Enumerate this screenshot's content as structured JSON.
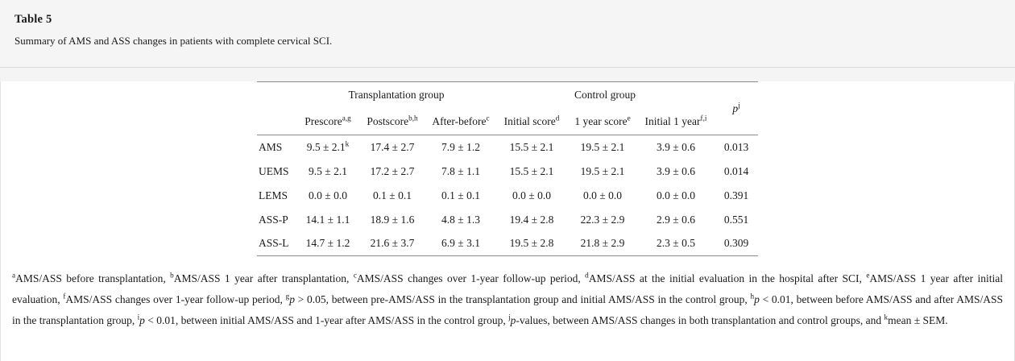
{
  "header": {
    "title": "Table 5",
    "caption": "Summary of AMS and ASS changes in patients with complete cervical SCI."
  },
  "table": {
    "group_headers": [
      {
        "label": "Transplantation group",
        "span": 3
      },
      {
        "label": "Control group",
        "span": 3
      }
    ],
    "p_header": {
      "base": "p",
      "sup": "j"
    },
    "columns": [
      {
        "label": "Prescore",
        "sup": "a,g"
      },
      {
        "label": "Postscore",
        "sup": "b,h"
      },
      {
        "label": "After-before",
        "sup": "c"
      },
      {
        "label": "Initial score",
        "sup": "d"
      },
      {
        "label": "1 year score",
        "sup": "e"
      },
      {
        "label": "Initial 1 year",
        "sup": "f,i"
      }
    ],
    "rows": [
      {
        "label": "AMS",
        "values": [
          [
            "9.5 ± 2.1",
            "k"
          ],
          [
            "17.4 ± 2.7",
            ""
          ],
          [
            "7.9 ± 1.2",
            ""
          ],
          [
            "15.5 ± 2.1",
            ""
          ],
          [
            "19.5 ± 2.1",
            ""
          ],
          [
            "3.9 ± 0.6",
            ""
          ]
        ],
        "p": "0.013"
      },
      {
        "label": "UEMS",
        "values": [
          [
            "9.5 ± 2.1",
            ""
          ],
          [
            "17.2 ± 2.7",
            ""
          ],
          [
            "7.8 ± 1.1",
            ""
          ],
          [
            "15.5 ± 2.1",
            ""
          ],
          [
            "19.5 ± 2.1",
            ""
          ],
          [
            "3.9 ± 0.6",
            ""
          ]
        ],
        "p": "0.014"
      },
      {
        "label": "LEMS",
        "values": [
          [
            "0.0 ± 0.0",
            ""
          ],
          [
            "0.1 ± 0.1",
            ""
          ],
          [
            "0.1 ± 0.1",
            ""
          ],
          [
            "0.0 ± 0.0",
            ""
          ],
          [
            "0.0 ± 0.0",
            ""
          ],
          [
            "0.0 ± 0.0",
            ""
          ]
        ],
        "p": "0.391"
      },
      {
        "label": "ASS-P",
        "values": [
          [
            "14.1 ± 1.1",
            ""
          ],
          [
            "18.9 ± 1.6",
            ""
          ],
          [
            "4.8 ± 1.3",
            ""
          ],
          [
            "19.4 ± 2.8",
            ""
          ],
          [
            "22.3 ± 2.9",
            ""
          ],
          [
            "2.9 ± 0.6",
            ""
          ]
        ],
        "p": "0.551"
      },
      {
        "label": "ASS-L",
        "values": [
          [
            "14.7 ± 1.2",
            ""
          ],
          [
            "21.6 ± 3.7",
            ""
          ],
          [
            "6.9 ± 3.1",
            ""
          ],
          [
            "19.5 ± 2.8",
            ""
          ],
          [
            "21.8 ± 2.9",
            ""
          ],
          [
            "2.3 ± 0.5",
            ""
          ]
        ],
        "p": "0.309"
      }
    ]
  },
  "footnotes": [
    {
      "sup": "a",
      "em": "",
      "text": "AMS/ASS before transplantation, "
    },
    {
      "sup": "b",
      "em": "",
      "text": "AMS/ASS 1 year after transplantation, "
    },
    {
      "sup": "c",
      "em": "",
      "text": "AMS/ASS changes over 1-year follow-up period, "
    },
    {
      "sup": "d",
      "em": "",
      "text": "AMS/ASS at the initial evaluation in the hospital after SCI, "
    },
    {
      "sup": "e",
      "em": "",
      "text": "AMS/ASS 1 year after initial evaluation, "
    },
    {
      "sup": "f",
      "em": "",
      "text": "AMS/ASS changes over 1-year follow-up period, "
    },
    {
      "sup": "g",
      "em": "p",
      "text": " > 0.05, between pre-AMS/ASS in the transplantation group and initial AMS/ASS in the control group, "
    },
    {
      "sup": "h",
      "em": "p",
      "text": " < 0.01, between before AMS/ASS and after AMS/ASS in the transplantation group, "
    },
    {
      "sup": "i",
      "em": "p",
      "text": " < 0.01, between initial AMS/ASS and 1-year after AMS/ASS in the control group, "
    },
    {
      "sup": "j",
      "em": "p",
      "text": "-values, between AMS/ASS changes in both transplantation and control groups, and "
    },
    {
      "sup": "k",
      "em": "",
      "text": "mean ± SEM."
    }
  ],
  "colors": {
    "band_bg": "#f5f5f5",
    "panel_bg": "#ffffff",
    "rule": "#8a8a8a",
    "border": "#dcdcdc",
    "text": "#1a1a1a"
  }
}
